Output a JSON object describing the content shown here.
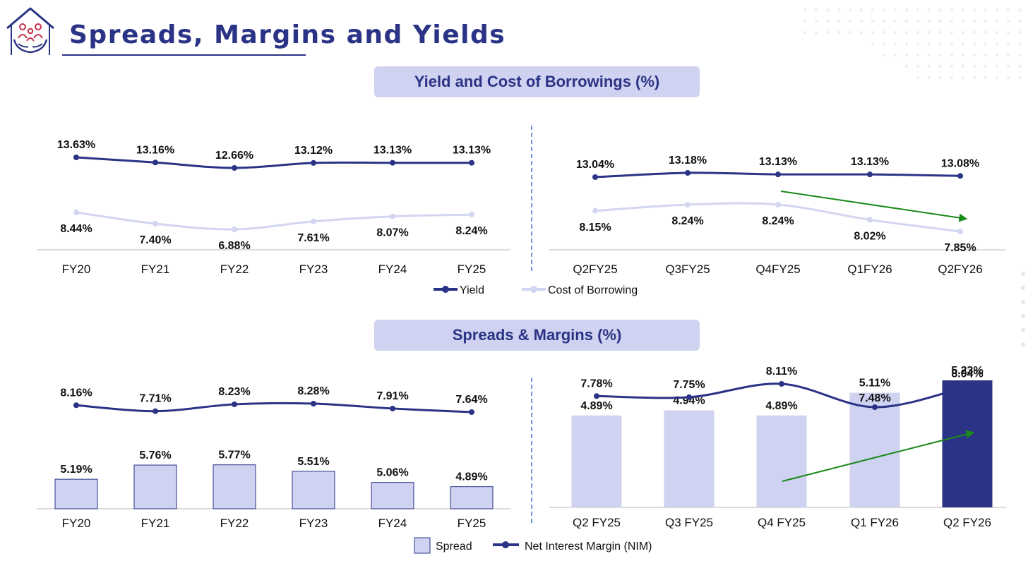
{
  "page": {
    "title": "Spreads, Margins and Yields",
    "colors": {
      "navy": "#2a3385",
      "lavender": "#cfd2f0",
      "green": "#1a8a1a",
      "divider": "#4a6fd0"
    }
  },
  "sections": {
    "yield_title": "Yield and Cost of Borrowings (%)",
    "spreads_title": "Spreads & Margins (%)"
  },
  "chart_data": [
    {
      "type": "line",
      "title": "Yield and Cost of Borrowings (%) - Annual",
      "categories": [
        "FY20",
        "FY21",
        "FY22",
        "FY23",
        "FY24",
        "FY25"
      ],
      "series": [
        {
          "name": "Yield",
          "values": [
            13.63,
            13.16,
            12.66,
            13.12,
            13.13,
            13.13
          ],
          "labels": [
            "13.63%",
            "13.16%",
            "12.66%",
            "13.12%",
            "13.13%",
            "13.13%"
          ]
        },
        {
          "name": "Cost of Borrowing",
          "values": [
            8.44,
            7.4,
            6.88,
            7.61,
            8.07,
            8.24
          ],
          "labels": [
            "8.44%",
            "7.40%",
            "6.88%",
            "7.61%",
            "8.07%",
            "8.24%"
          ]
        }
      ]
    },
    {
      "type": "line",
      "title": "Yield and Cost of Borrowings (%) - Quarterly",
      "categories": [
        "Q2FY25",
        "Q3FY25",
        "Q4FY25",
        "Q1FY26",
        "Q2FY26"
      ],
      "series": [
        {
          "name": "Yield",
          "values": [
            13.04,
            13.18,
            13.13,
            13.13,
            13.08
          ],
          "labels": [
            "13.04%",
            "13.18%",
            "13.13%",
            "13.13%",
            "13.08%"
          ]
        },
        {
          "name": "Cost of Borrowing",
          "values": [
            8.15,
            8.24,
            8.24,
            8.02,
            7.85
          ],
          "labels": [
            "8.15%",
            "8.24%",
            "8.24%",
            "8.02%",
            "7.85%"
          ]
        }
      ],
      "annotation": "downward-trend-arrow"
    },
    {
      "type": "bar",
      "title": "Spreads & Margins (%) - Annual",
      "categories": [
        "FY20",
        "FY21",
        "FY22",
        "FY23",
        "FY24",
        "FY25"
      ],
      "series": [
        {
          "name": "Spread",
          "kind": "bar",
          "values": [
            5.19,
            5.76,
            5.77,
            5.51,
            5.06,
            4.89
          ],
          "labels": [
            "5.19%",
            "5.76%",
            "5.77%",
            "5.51%",
            "5.06%",
            "4.89%"
          ]
        },
        {
          "name": "Net Interest Margin (NIM)",
          "kind": "line",
          "values": [
            8.16,
            7.71,
            8.23,
            8.28,
            7.91,
            7.64
          ],
          "labels": [
            "8.16%",
            "7.71%",
            "8.23%",
            "8.28%",
            "7.91%",
            "7.64%"
          ]
        }
      ]
    },
    {
      "type": "bar",
      "title": "Spreads & Margins (%) - Quarterly",
      "categories": [
        "Q2 FY25",
        "Q3 FY25",
        "Q4 FY25",
        "Q1 FY26",
        "Q2 FY26"
      ],
      "series": [
        {
          "name": "Spread",
          "kind": "bar",
          "values": [
            4.89,
            4.94,
            4.89,
            5.11,
            5.23
          ],
          "labels": [
            "4.89%",
            "4.94%",
            "4.89%",
            "5.11%",
            "5.23%"
          ],
          "highlight_index": 4
        },
        {
          "name": "Net Interest Margin (NIM)",
          "kind": "line",
          "values": [
            7.78,
            7.75,
            8.11,
            7.48,
            8.04
          ],
          "labels": [
            "7.78%",
            "7.75%",
            "8.11%",
            "7.48%",
            "8.04%"
          ]
        }
      ],
      "annotation": "upward-trend-arrow"
    }
  ],
  "legends": {
    "top": {
      "yield": "Yield",
      "cost": "Cost of Borrowing"
    },
    "bottom": {
      "spread": "Spread",
      "nim": "Net Interest Margin (NIM)"
    }
  }
}
